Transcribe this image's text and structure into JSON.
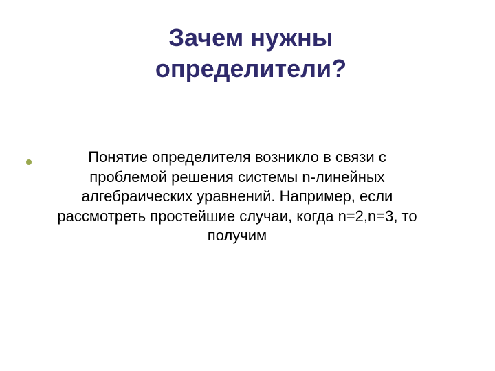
{
  "slide": {
    "title": "Зачем нужны определители?",
    "body": "Понятие определителя возникло в связи с проблемой решения системы n-линейных алгебраических уравнений. Например, если рассмотреть простейшие случаи, когда n=2,n=3, то получим",
    "title_color": "#2f2a6b",
    "body_color": "#000000",
    "bullet_color": "#9aa84f",
    "background_color": "#ffffff",
    "title_fontsize": 36,
    "body_fontsize": 22,
    "divider_color": "#000000"
  }
}
